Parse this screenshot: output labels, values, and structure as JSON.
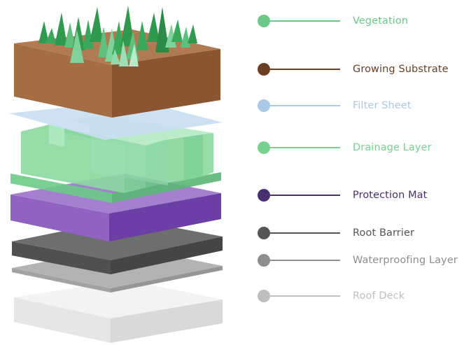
{
  "layers": [
    {
      "label": "Vegetation",
      "color": "#6cc98a"
    },
    {
      "label": "Growing Substrate",
      "color": "#6b3f22"
    },
    {
      "label": "Filter Sheet",
      "color": "#a9c9e6"
    },
    {
      "label": "Drainage Layer",
      "color": "#76d08f"
    },
    {
      "label": "Protection Mat",
      "color": "#4a2f6e"
    },
    {
      "label": "Root Barrier",
      "color": "#555555"
    },
    {
      "label": "Waterproofing Layer",
      "color": "#8e8e8e"
    },
    {
      "label": "Roof Deck",
      "color": "#bfbfbf"
    }
  ]
}
